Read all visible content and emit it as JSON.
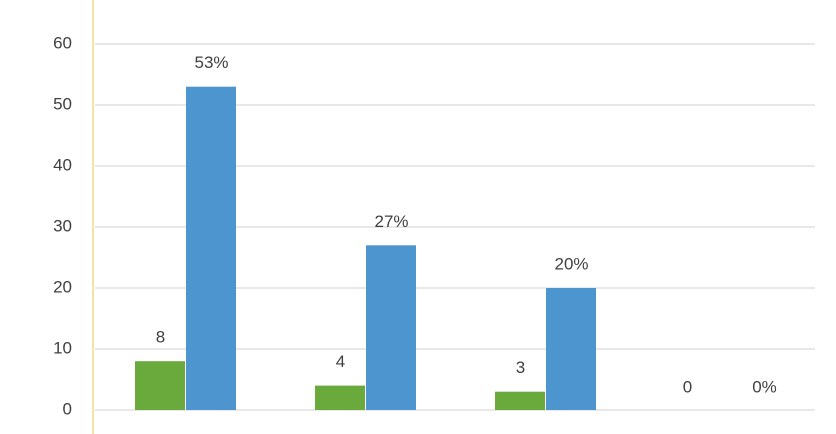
{
  "chart_data": {
    "type": "bar",
    "categories": [
      null,
      null,
      null,
      null
    ],
    "series": [
      {
        "color": "#6aa93b",
        "values": [
          8,
          4,
          3,
          0
        ]
      },
      {
        "color": "#4d95cf",
        "values": [
          53,
          27,
          20,
          0
        ],
        "value_labels": [
          "53%",
          "27%",
          "20%",
          "0%"
        ]
      }
    ],
    "ylim": [
      0,
      60
    ],
    "yticks": [
      0,
      10,
      20,
      30,
      40,
      50,
      60
    ],
    "grid": true
  }
}
